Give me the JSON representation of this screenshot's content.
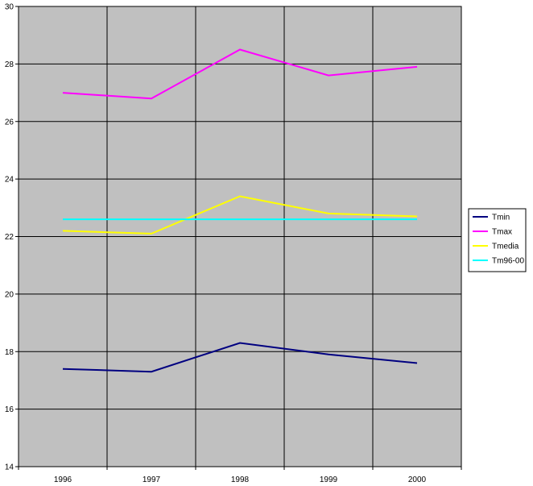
{
  "chart_data": {
    "type": "line",
    "title": "",
    "xlabel": "",
    "ylabel": "",
    "categories": [
      "1996",
      "1997",
      "1998",
      "1999",
      "2000"
    ],
    "ylim": [
      14,
      30
    ],
    "yticks": [
      "14",
      "16",
      "18",
      "20",
      "22",
      "24",
      "26",
      "28",
      "30"
    ],
    "grid": true,
    "legend_position": "right",
    "plot_background": "#c0c0c0",
    "series": [
      {
        "name": "Tmin",
        "color": "#000080",
        "values": [
          17.4,
          17.3,
          18.3,
          17.9,
          17.6
        ]
      },
      {
        "name": "Tmax",
        "color": "#ff00ff",
        "values": [
          27.0,
          26.8,
          28.5,
          27.6,
          27.9
        ]
      },
      {
        "name": "Tmedia",
        "color": "#ffff00",
        "values": [
          22.2,
          22.1,
          23.4,
          22.8,
          22.7
        ]
      },
      {
        "name": "Tm96-00",
        "color": "#00ffff",
        "values": [
          22.6,
          22.6,
          22.6,
          22.6,
          22.6
        ]
      }
    ]
  }
}
